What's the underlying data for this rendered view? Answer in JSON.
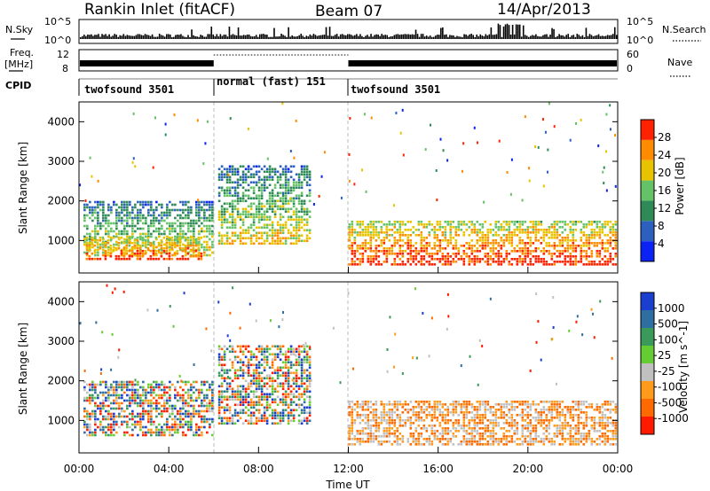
{
  "header": {
    "station": "Rankin Inlet (fitACF)",
    "beam": "Beam 07",
    "date": "14/Apr/2013"
  },
  "status_panels": {
    "nsky_label": "N.Sky",
    "nsearch_label": "N.Search",
    "nsky_ticks": [
      "10^5",
      "10^0"
    ],
    "nsearch_ticks": [
      "10^5",
      "10^0"
    ],
    "freq_label": "Freq.",
    "freq_unit": "[MHz]",
    "freq_ticks": [
      "12",
      "8"
    ],
    "nave_label": "Nave",
    "nave_ticks": [
      "60",
      "0"
    ],
    "cpid_label": "CPID",
    "cpid_segments": [
      {
        "label": "twofsound 3501",
        "start_hour": 0,
        "end_hour": 6
      },
      {
        "label": "normal (fast) 151",
        "start_hour": 6,
        "end_hour": 12
      },
      {
        "label": "twofsound 3501",
        "start_hour": 12,
        "end_hour": 24
      }
    ]
  },
  "chart_data": [
    {
      "type": "heatmap",
      "title": "",
      "ylabel": "Slant Range [km]",
      "xlabel": "",
      "y_ticks": [
        1000,
        2000,
        3000,
        4000
      ],
      "ylim": [
        180,
        4500
      ],
      "xlim": [
        0,
        24
      ],
      "colorbar": {
        "label": "Power [dB]",
        "ticks": [
          4,
          8,
          12,
          16,
          20,
          24,
          28
        ],
        "range": [
          0,
          32
        ],
        "colors": [
          "#0b22f5",
          "#2d5fbf",
          "#2e8b57",
          "#66c266",
          "#e8c400",
          "#ff8c00",
          "#ff2200"
        ]
      },
      "regions": [
        {
          "x": [
            0.2,
            6.0
          ],
          "y": [
            600,
            2000
          ],
          "level": "mid"
        },
        {
          "x": [
            0.3,
            5.5
          ],
          "y": [
            500,
            1100
          ],
          "level": "high"
        },
        {
          "x": [
            6.2,
            10.3
          ],
          "y": [
            900,
            2900
          ],
          "level": "mid"
        },
        {
          "x": [
            12.0,
            24.0
          ],
          "y": [
            400,
            1500
          ],
          "level": "high"
        }
      ]
    },
    {
      "type": "heatmap",
      "title": "",
      "ylabel": "Slant Range [km]",
      "xlabel": "Time UT",
      "y_ticks": [
        1000,
        2000,
        3000,
        4000
      ],
      "ylim": [
        180,
        4500
      ],
      "xlim": [
        0,
        24
      ],
      "x_tick_labels": [
        "00:00",
        "04:00",
        "08:00",
        "12:00",
        "16:00",
        "20:00",
        "00:00"
      ],
      "x_tick_hours": [
        0,
        4,
        8,
        12,
        16,
        20,
        24
      ],
      "colorbar": {
        "label": "Velocity [m s^-1]",
        "ticks": [
          1000,
          500,
          100,
          25,
          -25,
          -100,
          -500,
          -1000
        ],
        "colors": [
          "#1a3fd0",
          "#2e6ea0",
          "#3a9a5a",
          "#66cc33",
          "#c0c0c0",
          "#ff9a1a",
          "#ff6a00",
          "#ff1a00"
        ]
      },
      "regions": [
        {
          "x": [
            0.2,
            6.0
          ],
          "y": [
            600,
            2000
          ],
          "level": "mixed"
        },
        {
          "x": [
            6.2,
            10.3
          ],
          "y": [
            900,
            2900
          ],
          "level": "mixed"
        },
        {
          "x": [
            12.0,
            24.0
          ],
          "y": [
            400,
            1500
          ],
          "level": "negative"
        }
      ]
    }
  ]
}
